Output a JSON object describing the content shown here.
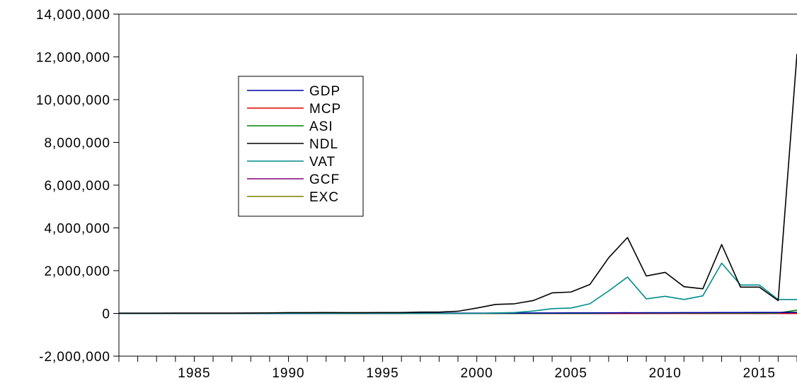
{
  "chart_data": {
    "type": "line",
    "title": "",
    "xlabel": "",
    "ylabel": "",
    "x": [
      1981,
      1982,
      1983,
      1984,
      1985,
      1986,
      1987,
      1988,
      1989,
      1990,
      1991,
      1992,
      1993,
      1994,
      1995,
      1996,
      1997,
      1998,
      1999,
      2000,
      2001,
      2002,
      2003,
      2004,
      2005,
      2006,
      2007,
      2008,
      2009,
      2010,
      2011,
      2012,
      2013,
      2014,
      2015,
      2016,
      2017
    ],
    "xlim": [
      1981,
      2017
    ],
    "ylim": [
      -2000000,
      14000000
    ],
    "yticks": [
      -2000000,
      0,
      2000000,
      4000000,
      6000000,
      8000000,
      10000000,
      12000000,
      14000000
    ],
    "ytick_labels": [
      "-2,000,000",
      "0",
      "2,000,000",
      "4,000,000",
      "6,000,000",
      "8,000,000",
      "10,000,000",
      "12,000,000",
      "14,000,000"
    ],
    "xticks": [
      1985,
      1990,
      1995,
      2000,
      2005,
      2010,
      2015
    ],
    "xtick_labels": [
      "1985",
      "1990",
      "1995",
      "2000",
      "2005",
      "2010",
      "2015"
    ],
    "legend_position": "upper-left inside plot",
    "grid": false,
    "series": [
      {
        "name": "GDP",
        "color": "#0000a8",
        "values": [
          1000,
          1000,
          1000,
          1000,
          1000,
          1000,
          1000,
          2000,
          2000,
          2000,
          3000,
          4000,
          4000,
          5000,
          6000,
          7000,
          8000,
          9000,
          10000,
          12000,
          14000,
          16000,
          18000,
          20000,
          22000,
          24000,
          26000,
          28000,
          30000,
          32000,
          34000,
          36000,
          38000,
          40000,
          42000,
          44000,
          46000
        ]
      },
      {
        "name": "MCP",
        "color": "#e00000",
        "values": [
          0,
          0,
          0,
          0,
          0,
          0,
          0,
          0,
          0,
          0,
          0,
          0,
          0,
          0,
          0,
          0,
          0,
          0,
          0,
          0,
          0,
          0,
          0,
          0,
          0,
          0,
          0,
          0,
          0,
          0,
          0,
          0,
          0,
          0,
          0,
          0,
          0
        ]
      },
      {
        "name": "ASI",
        "color": "#008000",
        "values": [
          0,
          0,
          0,
          0,
          0,
          0,
          0,
          0,
          0,
          0,
          0,
          0,
          0,
          0,
          0,
          0,
          0,
          0,
          0,
          0,
          0,
          0,
          0,
          0,
          0,
          0,
          20000,
          30000,
          20000,
          20000,
          20000,
          20000,
          20000,
          20000,
          20000,
          20000,
          150000
        ]
      },
      {
        "name": "NDL",
        "color": "#000000",
        "values": [
          10000,
          10000,
          10000,
          15000,
          15000,
          15000,
          15000,
          20000,
          25000,
          35000,
          35000,
          40000,
          35000,
          35000,
          40000,
          40000,
          60000,
          60000,
          100000,
          250000,
          420000,
          450000,
          600000,
          960000,
          1000000,
          1350000,
          2600000,
          3550000,
          1750000,
          1920000,
          1250000,
          1150000,
          3220000,
          1230000,
          1230000,
          600000,
          12150000
        ]
      },
      {
        "name": "VAT",
        "color": "#008c8c",
        "values": [
          0,
          0,
          0,
          0,
          0,
          0,
          0,
          0,
          0,
          0,
          0,
          0,
          0,
          0,
          0,
          0,
          0,
          0,
          0,
          0,
          20000,
          40000,
          110000,
          220000,
          250000,
          450000,
          1050000,
          1700000,
          680000,
          800000,
          650000,
          820000,
          2350000,
          1330000,
          1330000,
          650000,
          650000
        ]
      },
      {
        "name": "GCF",
        "color": "#800080",
        "values": [
          0,
          0,
          0,
          0,
          0,
          0,
          0,
          0,
          0,
          0,
          0,
          0,
          0,
          0,
          0,
          0,
          0,
          0,
          0,
          0,
          0,
          0,
          0,
          0,
          0,
          0,
          0,
          0,
          0,
          0,
          0,
          0,
          0,
          0,
          0,
          0,
          0
        ]
      },
      {
        "name": "EXC",
        "color": "#808000",
        "values": [
          0,
          0,
          0,
          0,
          0,
          0,
          0,
          0,
          0,
          0,
          0,
          0,
          0,
          0,
          0,
          0,
          0,
          0,
          0,
          0,
          0,
          0,
          0,
          0,
          0,
          0,
          0,
          0,
          0,
          0,
          0,
          0,
          0,
          0,
          0,
          0,
          0
        ]
      }
    ]
  }
}
